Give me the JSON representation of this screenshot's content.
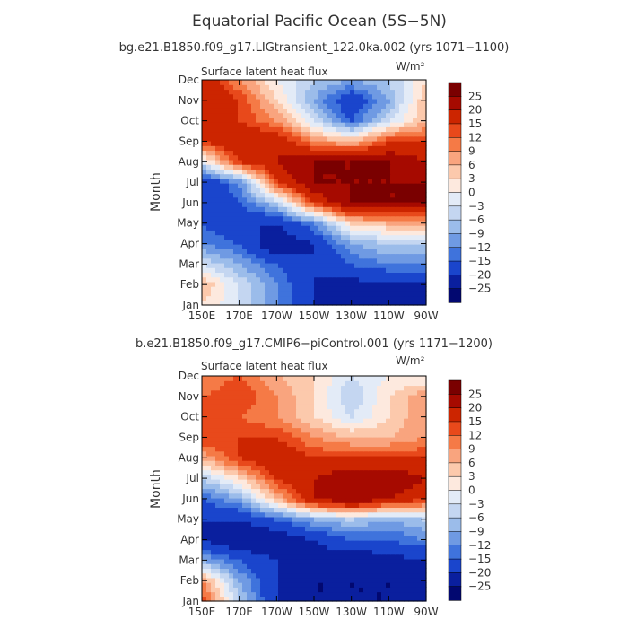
{
  "figure": {
    "title": "Equatorial Pacific Ocean (5S−5N)"
  },
  "colorbar": {
    "levels": [
      "25",
      "20",
      "15",
      "12",
      "9",
      "6",
      "3",
      "0",
      "−3",
      "−6",
      "−9",
      "−12",
      "−15",
      "−20",
      "−25"
    ],
    "colors": [
      "#7a0000",
      "#a60a00",
      "#cc2500",
      "#e8491b",
      "#f57a46",
      "#f9a47e",
      "#fcc9ac",
      "#fde9de",
      "#e3ebf7",
      "#c4d6f1",
      "#9bbcea",
      "#6f9ae3",
      "#3f73dc",
      "#1a45cc",
      "#0a1f9e",
      "#020870"
    ]
  },
  "chart_data": [
    {
      "type": "heatmap",
      "subtitle": "bg.e21.B1850.f09_g17.LIGtransient_122.0ka.002 (yrs 1071−1100)",
      "variable": "Surface latent heat flux",
      "units": "W/m²",
      "xlabel": "",
      "ylabel": "Month",
      "x": [
        "150E",
        "170E",
        "170W",
        "150W",
        "130W",
        "110W",
        "90W"
      ],
      "y": [
        "Jan",
        "Feb",
        "Mar",
        "Apr",
        "May",
        "Jun",
        "Jul",
        "Aug",
        "Sep",
        "Oct",
        "Nov",
        "Dec"
      ],
      "values": [
        [
          3,
          -3,
          -12,
          -20,
          -25,
          -25,
          -25
        ],
        [
          6,
          -3,
          -12,
          -20,
          -22,
          -22,
          -22
        ],
        [
          -3,
          -9,
          -15,
          -20,
          -15,
          -12,
          -12
        ],
        [
          -12,
          -15,
          -25,
          -20,
          -9,
          -6,
          -6
        ],
        [
          -15,
          -20,
          -20,
          -12,
          3,
          6,
          6
        ],
        [
          -20,
          -15,
          -6,
          15,
          25,
          25,
          25
        ],
        [
          -20,
          -12,
          15,
          25,
          25,
          25,
          25
        ],
        [
          -3,
          15,
          20,
          25,
          25,
          25,
          20
        ],
        [
          15,
          20,
          20,
          9,
          6,
          15,
          15
        ],
        [
          15,
          15,
          9,
          -3,
          -15,
          -3,
          6
        ],
        [
          20,
          15,
          3,
          -9,
          -20,
          -9,
          6
        ],
        [
          20,
          9,
          0,
          -6,
          -9,
          -6,
          3
        ]
      ],
      "colorbar_levels": [
        -25,
        -20,
        -15,
        -12,
        -9,
        -6,
        -3,
        0,
        3,
        6,
        9,
        12,
        15,
        20,
        25
      ]
    },
    {
      "type": "heatmap",
      "subtitle": "b.e21.B1850.f09_g17.CMIP6−piControl.001 (yrs 1171−1200)",
      "variable": "Surface latent heat flux",
      "units": "W/m²",
      "xlabel": "",
      "ylabel": "Month",
      "x": [
        "150E",
        "170E",
        "170W",
        "150W",
        "130W",
        "110W",
        "90W"
      ],
      "y": [
        "Jan",
        "Feb",
        "Mar",
        "Apr",
        "May",
        "Jun",
        "Jul",
        "Aug",
        "Sep",
        "Oct",
        "Nov",
        "Dec"
      ],
      "values": [
        [
          15,
          -6,
          -20,
          -25,
          -25,
          -25,
          -25
        ],
        [
          9,
          -9,
          -20,
          -25,
          -25,
          -25,
          -25
        ],
        [
          -9,
          -15,
          -20,
          -22,
          -25,
          -22,
          -20
        ],
        [
          -20,
          -25,
          -25,
          -20,
          -15,
          -15,
          -12
        ],
        [
          -20,
          -20,
          -15,
          -9,
          -6,
          -9,
          -6
        ],
        [
          -15,
          -9,
          6,
          20,
          25,
          20,
          15
        ],
        [
          -6,
          3,
          15,
          20,
          25,
          25,
          20
        ],
        [
          6,
          15,
          20,
          15,
          15,
          15,
          15
        ],
        [
          15,
          15,
          15,
          9,
          6,
          6,
          9
        ],
        [
          12,
          12,
          9,
          3,
          -3,
          3,
          9
        ],
        [
          12,
          15,
          9,
          3,
          -6,
          3,
          9
        ],
        [
          9,
          12,
          6,
          3,
          -3,
          0,
          0
        ]
      ],
      "colorbar_levels": [
        -25,
        -20,
        -15,
        -12,
        -9,
        -6,
        -3,
        0,
        3,
        6,
        9,
        12,
        15,
        20,
        25
      ]
    }
  ]
}
